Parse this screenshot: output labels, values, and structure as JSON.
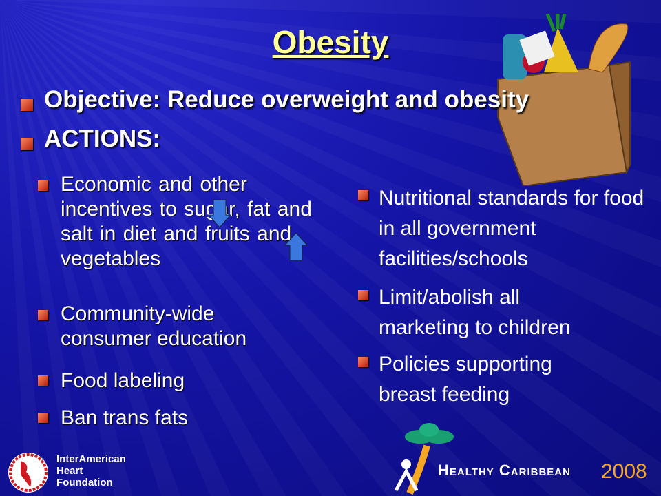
{
  "title": "Obesity",
  "headings": [
    "Objective: Reduce overweight and obesity",
    "ACTIONS:"
  ],
  "left_items": [
    "Economic and other incentives to sugar, fat and salt in diet and fruits and vegetables",
    "Community-wide consumer education",
    "Food labeling",
    "Ban trans fats"
  ],
  "right_items": [
    "Nutritional standards for food in all government facilities/schools",
    "Limit/abolish all marketing to children",
    "Policies supporting breast feeding"
  ],
  "logo_left": [
    "InterAmerican",
    "Heart",
    "Foundation"
  ],
  "logo_right": {
    "name": "Healthy Caribbean",
    "year": "2008"
  }
}
